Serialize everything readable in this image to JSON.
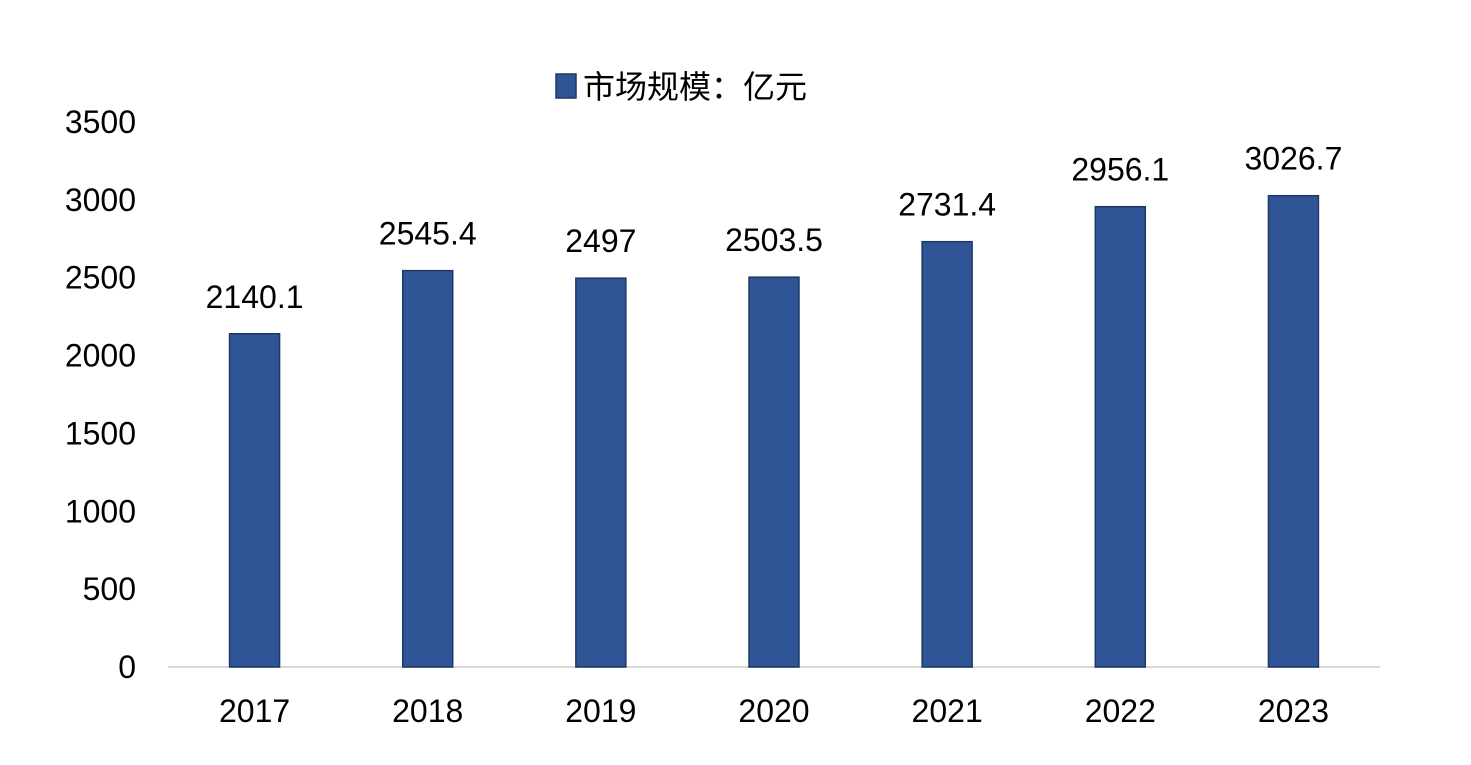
{
  "chart_data": {
    "type": "bar",
    "categories": [
      "2017",
      "2018",
      "2019",
      "2020",
      "2021",
      "2022",
      "2023"
    ],
    "series": [
      {
        "name": "市场规模：亿元",
        "values": [
          2140.1,
          2545.4,
          2497,
          2503.5,
          2731.4,
          2956.1,
          3026.7
        ],
        "value_labels": [
          "2140.1",
          "2545.4",
          "2497",
          "2503.5",
          "2731.4",
          "2956.1",
          "3026.7"
        ],
        "color": "#2F5597"
      }
    ],
    "title": "",
    "xlabel": "",
    "ylabel": "",
    "ylim": [
      0,
      3500
    ],
    "yticks": [
      "0",
      "500",
      "1000",
      "1500",
      "2000",
      "2500",
      "3000",
      "3500"
    ],
    "grid": false,
    "legend_position": "top-center"
  }
}
